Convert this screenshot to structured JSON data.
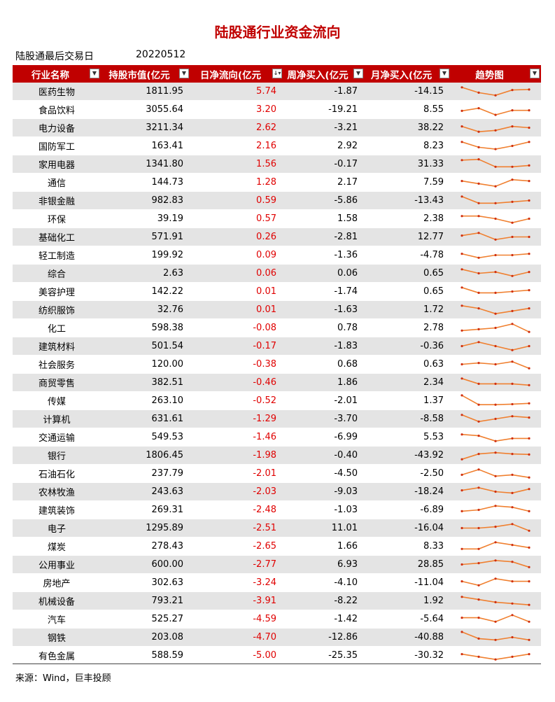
{
  "title": "陆股通行业资金流向",
  "last_trade_label": "陆股通最后交易日",
  "last_trade_date": "20220512",
  "columns": [
    "行业名称",
    "持股市值(亿元",
    "日净流向(亿元",
    "周净买入(亿元",
    "月净买入(亿元",
    "趋势图"
  ],
  "sort_icon": "sort-desc-icon",
  "accent_color": "#c00000",
  "trend_color": "#f08030",
  "rows": [
    {
      "name": "医药生物",
      "value": "1811.95",
      "daily": "5.74",
      "weekly": "-1.87",
      "monthly": "-14.15",
      "trend": [
        4,
        2,
        1,
        3,
        3.2
      ]
    },
    {
      "name": "食品饮料",
      "value": "3055.64",
      "daily": "3.20",
      "weekly": "-19.21",
      "monthly": "8.55",
      "trend": [
        2,
        3,
        0.5,
        2.2,
        2.2
      ]
    },
    {
      "name": "电力设备",
      "value": "3211.34",
      "daily": "2.62",
      "weekly": "-3.21",
      "monthly": "38.22",
      "trend": [
        3,
        1,
        1.5,
        3,
        2.5
      ]
    },
    {
      "name": "国防军工",
      "value": "163.41",
      "daily": "2.16",
      "weekly": "2.92",
      "monthly": "8.23",
      "trend": [
        4,
        2,
        1.3,
        2.5,
        4
      ]
    },
    {
      "name": "家用电器",
      "value": "1341.80",
      "daily": "1.56",
      "weekly": "-0.17",
      "monthly": "31.33",
      "trend": [
        4,
        4.3,
        1.5,
        1.5,
        2
      ]
    },
    {
      "name": "通信",
      "value": "144.73",
      "daily": "1.28",
      "weekly": "2.17",
      "monthly": "7.59",
      "trend": [
        3,
        2,
        1,
        3.5,
        3
      ]
    },
    {
      "name": "非银金融",
      "value": "982.83",
      "daily": "0.59",
      "weekly": "-5.86",
      "monthly": "-13.43",
      "trend": [
        4,
        1.5,
        1.5,
        2,
        2.5
      ]
    },
    {
      "name": "环保",
      "value": "39.19",
      "daily": "0.57",
      "weekly": "1.58",
      "monthly": "2.38",
      "trend": [
        3.5,
        3.5,
        2.5,
        1,
        2.5
      ]
    },
    {
      "name": "基础化工",
      "value": "571.91",
      "daily": "0.26",
      "weekly": "-2.81",
      "monthly": "12.77",
      "trend": [
        3,
        4,
        1.5,
        2.5,
        2.5
      ]
    },
    {
      "name": "轻工制造",
      "value": "199.92",
      "daily": "0.09",
      "weekly": "-1.36",
      "monthly": "-4.78",
      "trend": [
        3,
        1.5,
        2.5,
        2.5,
        3
      ]
    },
    {
      "name": "综合",
      "value": "2.63",
      "daily": "0.06",
      "weekly": "0.06",
      "monthly": "0.65",
      "trend": [
        4,
        2.5,
        3,
        1.5,
        3
      ]
    },
    {
      "name": "美容护理",
      "value": "142.22",
      "daily": "0.01",
      "weekly": "-1.74",
      "monthly": "0.65",
      "trend": [
        4,
        2,
        2,
        2.5,
        3
      ]
    },
    {
      "name": "纺织服饰",
      "value": "32.76",
      "daily": "0.01",
      "weekly": "-1.63",
      "monthly": "1.72",
      "trend": [
        4,
        3,
        1,
        2,
        3
      ]
    },
    {
      "name": "化工",
      "value": "598.38",
      "daily": "-0.08",
      "weekly": "0.78",
      "monthly": "2.78",
      "trend": [
        1.5,
        2,
        2.5,
        4,
        1
      ]
    },
    {
      "name": "建筑材料",
      "value": "501.54",
      "daily": "-0.17",
      "weekly": "-1.83",
      "monthly": "-0.36",
      "trend": [
        2.5,
        4,
        2.5,
        1,
        2.5
      ]
    },
    {
      "name": "社会服务",
      "value": "120.00",
      "daily": "-0.38",
      "weekly": "0.68",
      "monthly": "0.63",
      "trend": [
        2.5,
        3,
        2.5,
        3.5,
        1
      ]
    },
    {
      "name": "商贸零售",
      "value": "382.51",
      "daily": "-0.46",
      "weekly": "1.86",
      "monthly": "2.34",
      "trend": [
        4,
        2,
        2,
        2,
        1.5
      ]
    },
    {
      "name": "传媒",
      "value": "263.10",
      "daily": "-0.52",
      "weekly": "-2.01",
      "monthly": "1.37",
      "trend": [
        4.5,
        1,
        1,
        1.2,
        1.5
      ]
    },
    {
      "name": "计算机",
      "value": "631.61",
      "daily": "-1.29",
      "weekly": "-3.70",
      "monthly": "-8.58",
      "trend": [
        4,
        1.5,
        2.5,
        3.5,
        3
      ]
    },
    {
      "name": "交通运输",
      "value": "549.53",
      "daily": "-1.46",
      "weekly": "-6.99",
      "monthly": "5.53",
      "trend": [
        3.5,
        3,
        1,
        2,
        2
      ]
    },
    {
      "name": "银行",
      "value": "1806.45",
      "daily": "-1.98",
      "weekly": "-0.40",
      "monthly": "-43.92",
      "trend": [
        1,
        3,
        3.5,
        3,
        2.8
      ]
    },
    {
      "name": "石油石化",
      "value": "237.79",
      "daily": "-2.01",
      "weekly": "-4.50",
      "monthly": "-2.50",
      "trend": [
        2,
        4,
        1.5,
        2,
        1
      ]
    },
    {
      "name": "农林牧渔",
      "value": "243.63",
      "daily": "-2.03",
      "weekly": "-9.03",
      "monthly": "-18.24",
      "trend": [
        3,
        4,
        2.5,
        2,
        3.5
      ]
    },
    {
      "name": "建筑装饰",
      "value": "269.31",
      "daily": "-2.48",
      "weekly": "-1.03",
      "monthly": "-6.89",
      "trend": [
        2,
        2.5,
        4,
        3.5,
        2
      ]
    },
    {
      "name": "电子",
      "value": "1295.89",
      "daily": "-2.51",
      "weekly": "11.01",
      "monthly": "-16.04",
      "trend": [
        2.5,
        2.5,
        3,
        4,
        1.5
      ]
    },
    {
      "name": "煤炭",
      "value": "278.43",
      "daily": "-2.65",
      "weekly": "1.66",
      "monthly": "8.33",
      "trend": [
        1.5,
        1.5,
        4,
        3,
        2
      ]
    },
    {
      "name": "公用事业",
      "value": "600.00",
      "daily": "-2.77",
      "weekly": "6.93",
      "monthly": "28.85",
      "trend": [
        2.5,
        3,
        4,
        3.5,
        1.5
      ]
    },
    {
      "name": "房地产",
      "value": "302.63",
      "daily": "-3.24",
      "weekly": "-4.10",
      "monthly": "-11.04",
      "trend": [
        3,
        1.5,
        4,
        3,
        3
      ]
    },
    {
      "name": "机械设备",
      "value": "793.21",
      "daily": "-3.91",
      "weekly": "-8.22",
      "monthly": "1.92",
      "trend": [
        4,
        3,
        2,
        1.5,
        1
      ]
    },
    {
      "name": "汽车",
      "value": "525.27",
      "daily": "-4.59",
      "weekly": "-1.42",
      "monthly": "-5.64",
      "trend": [
        3,
        3,
        1.5,
        4,
        1.5
      ]
    },
    {
      "name": "钢铁",
      "value": "203.08",
      "daily": "-4.70",
      "weekly": "-12.86",
      "monthly": "-40.88",
      "trend": [
        4.5,
        2,
        1.5,
        2.5,
        1.5
      ]
    },
    {
      "name": "有色金属",
      "value": "588.59",
      "daily": "-5.00",
      "weekly": "-25.35",
      "monthly": "-30.32",
      "trend": [
        3,
        2,
        1,
        2,
        3
      ]
    }
  ],
  "source": "来源：Wind，巨丰投顾"
}
